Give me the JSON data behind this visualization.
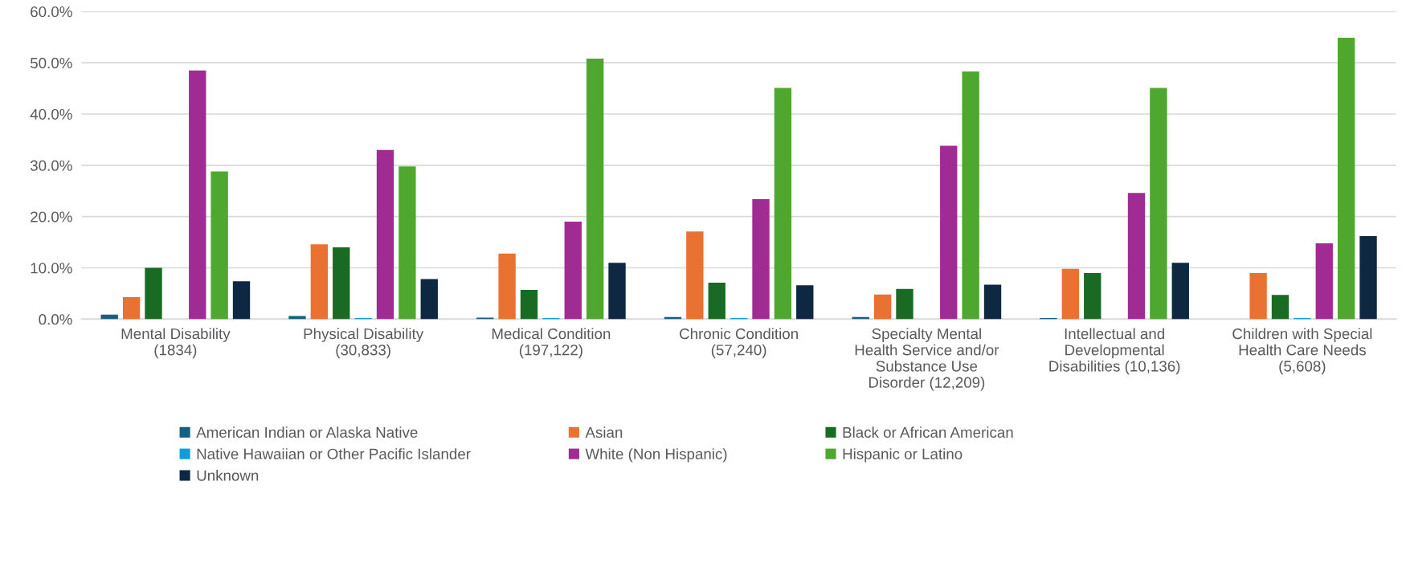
{
  "chart_data": {
    "type": "bar",
    "categories": [
      "Mental Disability\n(1834)",
      "Physical Disability\n(30,833)",
      "Medical Condition\n(197,122)",
      "Chronic Condition\n(57,240)",
      "Specialty Mental\nHealth Service and/or\nSubstance Use\nDisorder (12,209)",
      "Intellectual and\nDevelopmental\nDisabilities (10,136)",
      "Children with Special\nHealth Care Needs\n(5,608)"
    ],
    "series": [
      {
        "name": "American Indian or Alaska Native",
        "color": "#156082",
        "values": [
          0.9,
          0.6,
          0.3,
          0.4,
          0.4,
          0.2,
          null
        ]
      },
      {
        "name": "Asian",
        "color": "#e97132",
        "values": [
          4.3,
          14.6,
          12.8,
          17.1,
          4.8,
          9.8,
          9.0
        ]
      },
      {
        "name": "Black or African American",
        "color": "#196b24",
        "values": [
          10.0,
          14.0,
          5.7,
          7.1,
          5.9,
          9.0,
          4.7
        ]
      },
      {
        "name": "Native Hawaiian or Other Pacific Islander",
        "color": "#0f9ed5",
        "values": [
          0,
          0.2,
          0.2,
          0.2,
          0,
          null,
          0.2
        ]
      },
      {
        "name": "White (Non Hispanic)",
        "color": "#a02b93",
        "values": [
          48.5,
          33.0,
          19.0,
          23.4,
          33.8,
          24.6,
          14.8
        ]
      },
      {
        "name": "Hispanic or Latino",
        "color": "#4ea72e",
        "values": [
          28.8,
          29.8,
          50.8,
          45.1,
          48.3,
          45.1,
          54.9
        ]
      },
      {
        "name": "Unknown",
        "color": "#0e2841",
        "values": [
          7.4,
          7.8,
          11.0,
          6.6,
          6.7,
          11.0,
          16.2
        ]
      }
    ],
    "ylim": [
      0,
      60
    ],
    "yticks": [
      {
        "value": 0,
        "label": "0.0%"
      },
      {
        "value": 10,
        "label": "10.0%"
      },
      {
        "value": 20,
        "label": "20.0%"
      },
      {
        "value": 30,
        "label": "30.0%"
      },
      {
        "value": 40,
        "label": "40.0%"
      },
      {
        "value": 50,
        "label": "50.0%"
      },
      {
        "value": 60,
        "label": "60.0%"
      }
    ],
    "grid": "y",
    "legend": "bottom"
  }
}
